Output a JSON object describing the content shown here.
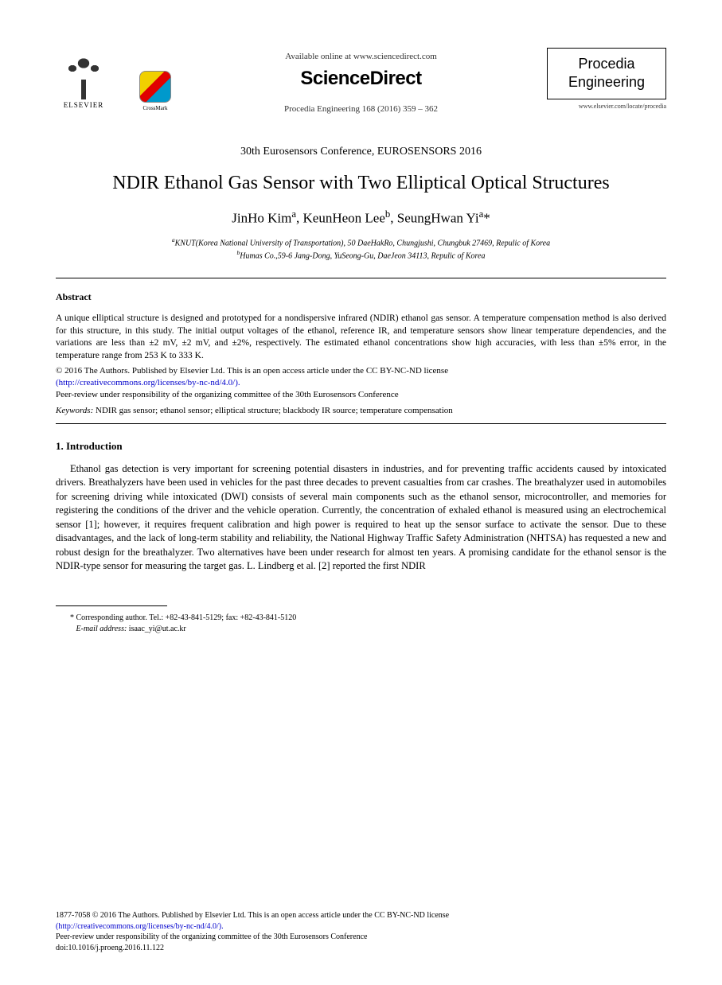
{
  "header": {
    "elsevier_label": "ELSEVIER",
    "crossmark_label": "CrossMark",
    "available_line": "Available online at www.sciencedirect.com",
    "sciencedirect": "ScienceDirect",
    "citation": "Procedia Engineering 168 (2016) 359 – 362",
    "journal_line1": "Procedia",
    "journal_line2": "Engineering",
    "journal_url": "www.elsevier.com/locate/procedia"
  },
  "conference": "30th Eurosensors Conference, EUROSENSORS 2016",
  "title": "NDIR Ethanol Gas Sensor with Two Elliptical Optical Structures",
  "authors_html": "JinHo Kim<sup>a</sup>, KeunHeon Lee<sup>b</sup>, SeungHwan Yi<sup>a</sup>*",
  "affiliations": {
    "a": "KNUT(Korea National University of Transportation), 50 DaeHakRo, Chungjushi, Chungbuk 27469, Repulic of Korea",
    "b": "Humas Co.,59-6 Jang-Dong, YuSeong-Gu, DaeJeon 34113, Repulic of Korea"
  },
  "abstract": {
    "heading": "Abstract",
    "text": "A unique elliptical structure is designed and prototyped for a nondispersive infrared (NDIR) ethanol gas sensor. A temperature compensation method is also derived for this structure, in this study. The initial output voltages of the ethanol, reference IR, and temperature sensors show linear temperature dependencies, and the variations are less than ±2 mV, ±2 mV, and ±2%, respectively. The estimated ethanol concentrations show high accuracies, with less than ±5% error, in the temperature range from 253 K to 333 K.",
    "copyright_line1": "© 2016 The Authors. Published by Elsevier Ltd. This is an open access article under the CC BY-NC-ND license",
    "license_url": "(http://creativecommons.org/licenses/by-nc-nd/4.0/).",
    "peer_review": "Peer-review under responsibility of the organizing committee of the 30th Eurosensors Conference",
    "keywords_label": "Keywords:",
    "keywords_text": " NDIR gas sensor; ethanol sensor; elliptical structure; blackbody IR source; temperature compensation"
  },
  "section1": {
    "heading": "1. Introduction",
    "para1": "Ethanol gas detection is very important for screening potential disasters in industries, and for preventing traffic accidents caused by intoxicated drivers. Breathalyzers have been used in vehicles for the past three decades to prevent casualties from car crashes. The breathalyzer used in automobiles for screening driving while intoxicated (DWI) consists of several main components such as the ethanol sensor, microcontroller, and memories for registering the conditions of the driver and the vehicle operation. Currently, the concentration of exhaled ethanol is measured using an electrochemical sensor [1]; however, it requires frequent calibration and high power is required to heat up the sensor surface to activate the sensor. Due to these disadvantages, and the lack of long-term stability and reliability, the National Highway Traffic Safety Administration (NHTSA) has requested a new and robust design for the breathalyzer. Two alternatives have been under research for almost ten years. A promising candidate for the ethanol sensor is the NDIR-type sensor for measuring the target gas. L. Lindberg et al. [2] reported the first NDIR"
  },
  "footnote": {
    "corr": "* Corresponding author. Tel.: +82-43-841-5129; fax: +82-43-841-5120",
    "email_label": "E-mail address:",
    "email": " isaac_yi@ut.ac.kr"
  },
  "footer": {
    "line1": "1877-7058 © 2016 The Authors. Published by Elsevier Ltd. This is an open access article under the CC BY-NC-ND license",
    "license_url": "(http://creativecommons.org/licenses/by-nc-nd/4.0/).",
    "peer_review": "Peer-review under responsibility of the organizing committee of the 30th Eurosensors Conference",
    "doi": "doi:10.1016/j.proeng.2016.11.122"
  },
  "colors": {
    "text": "#000000",
    "link": "#0000cc",
    "background": "#ffffff"
  }
}
